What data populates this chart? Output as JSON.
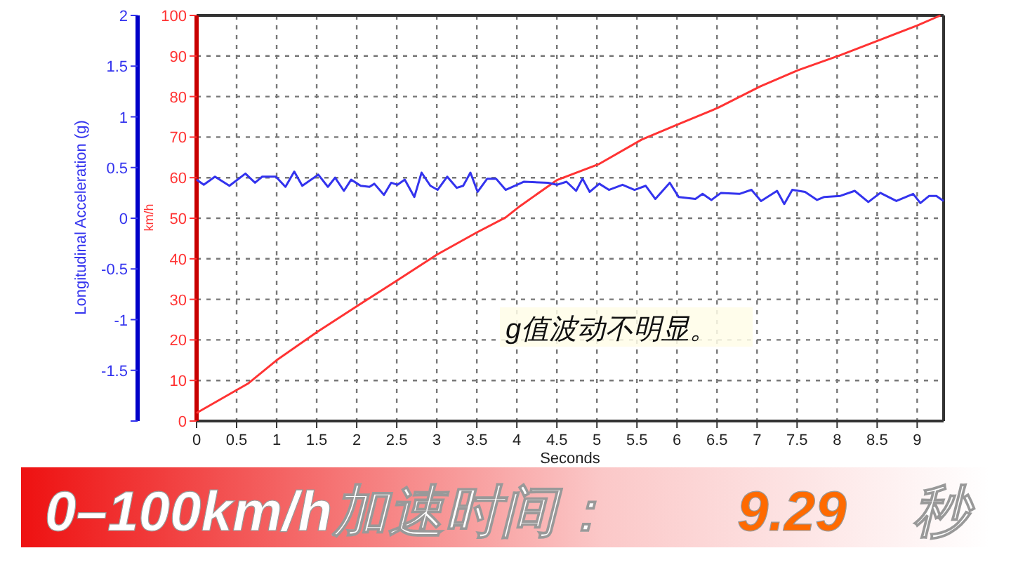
{
  "chart_data": {
    "type": "line",
    "xlabel": "Seconds",
    "ylabel": "km/h",
    "y2label": "Longitudinal Acceleration (g)",
    "xlim": [
      0,
      9.33
    ],
    "xticks": [
      0,
      0.5,
      1,
      1.5,
      2,
      2.5,
      3,
      3.5,
      4,
      4.5,
      5,
      5.5,
      6,
      6.5,
      7,
      7.5,
      8,
      8.5,
      9
    ],
    "ylim": [
      0,
      100
    ],
    "yticks": [
      0,
      10,
      20,
      30,
      40,
      50,
      60,
      70,
      80,
      90,
      100
    ],
    "y2lim": [
      -2,
      2
    ],
    "y2ticks": [
      {
        "value": -2,
        "label": null
      },
      -1.5,
      -1,
      -0.5,
      0,
      0.5,
      1,
      1.5,
      2
    ],
    "grid": true,
    "line_style": "solid",
    "marker": "none",
    "series": [
      {
        "color": "#ff3333",
        "x": [
          0,
          0.64,
          1,
          1.5,
          2,
          2.5,
          3,
          3.5,
          3.86,
          4.04,
          4.5,
          5.03,
          5.56,
          6.02,
          6.52,
          7.04,
          7.51,
          8.04,
          8.54,
          9.0,
          9.29
        ],
        "values": [
          2,
          9.2,
          15,
          21.9,
          28.3,
          34.6,
          41,
          46.5,
          50.2,
          53,
          59.4,
          63.4,
          69.4,
          73.2,
          77.3,
          82.5,
          86.5,
          90.2,
          94,
          97.5,
          100
        ]
      },
      {
        "color": "#3333ee",
        "axis": "y2",
        "x": [
          0,
          0.09,
          0.23,
          0.41,
          0.61,
          0.73,
          0.82,
          0.99,
          1.11,
          1.22,
          1.32,
          1.52,
          1.64,
          1.73,
          1.84,
          1.93,
          2.05,
          2.16,
          2.22,
          2.34,
          2.43,
          2.51,
          2.6,
          2.72,
          2.81,
          2.92,
          3.01,
          3.13,
          3.25,
          3.33,
          3.42,
          3.51,
          3.63,
          3.74,
          3.86,
          4.09,
          4.39,
          4.5,
          4.62,
          4.74,
          4.82,
          4.91,
          5.03,
          5.15,
          5.32,
          5.47,
          5.61,
          5.73,
          5.91,
          6.02,
          6.23,
          6.32,
          6.43,
          6.55,
          6.78,
          6.93,
          7.05,
          7.25,
          7.34,
          7.44,
          7.6,
          7.75,
          7.84,
          8.04,
          8.22,
          8.39,
          8.54,
          8.74,
          8.95,
          9.04,
          9.15,
          9.24,
          9.33
        ],
        "values": [
          0.38,
          0.33,
          0.41,
          0.32,
          0.44,
          0.35,
          0.41,
          0.41,
          0.31,
          0.46,
          0.32,
          0.43,
          0.31,
          0.4,
          0.27,
          0.38,
          0.32,
          0.31,
          0.34,
          0.23,
          0.35,
          0.33,
          0.38,
          0.21,
          0.45,
          0.32,
          0.28,
          0.41,
          0.3,
          0.32,
          0.45,
          0.26,
          0.39,
          0.39,
          0.28,
          0.36,
          0.35,
          0.33,
          0.36,
          0.27,
          0.39,
          0.26,
          0.34,
          0.28,
          0.33,
          0.28,
          0.32,
          0.19,
          0.35,
          0.21,
          0.19,
          0.24,
          0.18,
          0.25,
          0.24,
          0.28,
          0.17,
          0.27,
          0.14,
          0.28,
          0.26,
          0.18,
          0.21,
          0.22,
          0.27,
          0.16,
          0.25,
          0.17,
          0.24,
          0.15,
          0.22,
          0.22,
          0.17
        ]
      }
    ],
    "annotations": [
      "g值波动不明显。",
      "0–100km/h加速时间：",
      "9.29",
      "秒"
    ]
  }
}
